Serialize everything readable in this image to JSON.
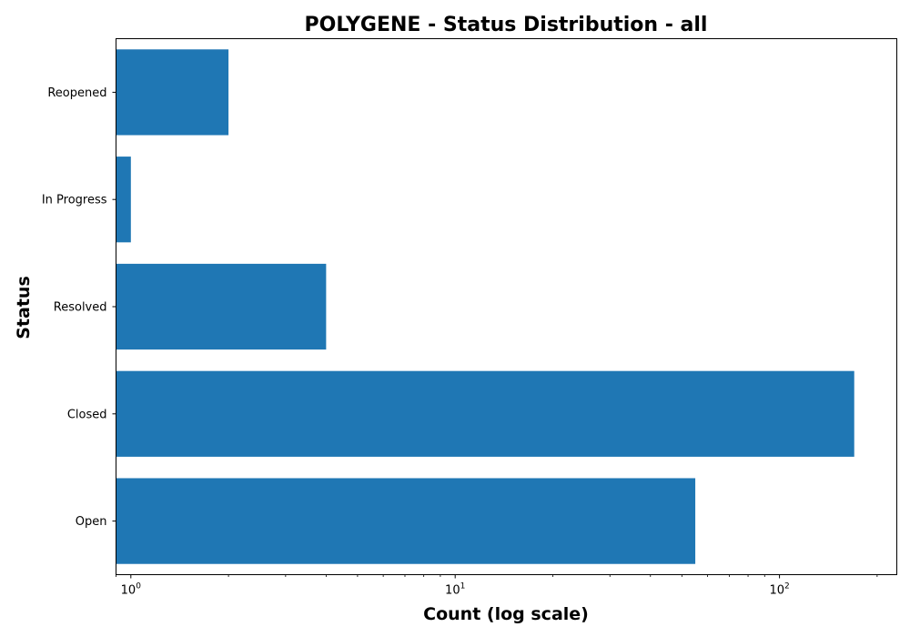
{
  "chart_data": {
    "type": "bar",
    "orientation": "horizontal",
    "title": "POLYGENE - Status Distribution - all",
    "xlabel": "Count (log scale)",
    "ylabel": "Status",
    "x_scale": "log",
    "xlim": [
      0.9,
      230
    ],
    "x_ticks": [
      {
        "value": 1,
        "base": "10",
        "exponent": "0"
      },
      {
        "value": 10,
        "base": "10",
        "exponent": "1"
      },
      {
        "value": 100,
        "base": "10",
        "exponent": "2"
      }
    ],
    "categories": [
      "Open",
      "Closed",
      "Resolved",
      "In Progress",
      "Reopened"
    ],
    "values": [
      55,
      170,
      4,
      1,
      2
    ],
    "bar_color": "#1f77b4",
    "grid": false,
    "legend": false
  }
}
